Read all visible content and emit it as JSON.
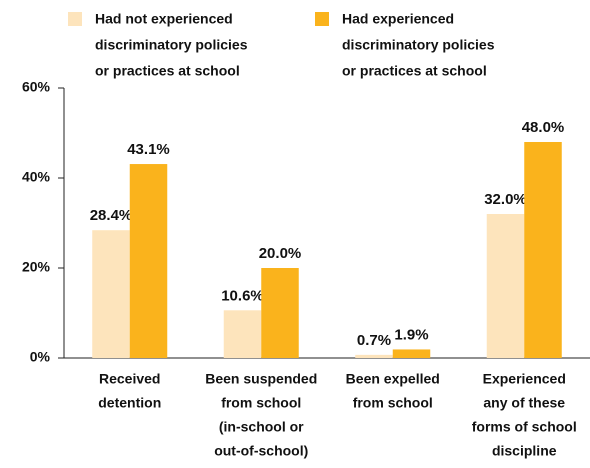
{
  "chart_data": {
    "type": "bar",
    "categories": [
      [
        "Received",
        "detention"
      ],
      [
        "Been suspended",
        "from school",
        "(in-school or",
        "out-of-school)"
      ],
      [
        "Been expelled",
        "from school"
      ],
      [
        "Experienced",
        "any of these",
        "forms of school",
        "discipline"
      ]
    ],
    "series": [
      {
        "name": [
          "Had not experienced",
          "discriminatory policies",
          "or practices at school"
        ],
        "color": "#fde4bc",
        "values": [
          28.4,
          10.6,
          0.7,
          32.0
        ],
        "value_labels": [
          "28.4%",
          "10.6%",
          "0.7%",
          "32.0%"
        ]
      },
      {
        "name": [
          "Had experienced",
          "discriminatory policies",
          "or practices at school"
        ],
        "color": "#fab31c",
        "values": [
          43.1,
          20.0,
          1.9,
          48.0
        ],
        "value_labels": [
          "43.1%",
          "20.0%",
          "1.9%",
          "48.0%"
        ]
      }
    ],
    "ylim": [
      0,
      60
    ],
    "yticks": [
      {
        "value": 0,
        "label": "0%"
      },
      {
        "value": 20,
        "label": "20%"
      },
      {
        "value": 40,
        "label": "40%"
      },
      {
        "value": 60,
        "label": "60%"
      }
    ]
  }
}
